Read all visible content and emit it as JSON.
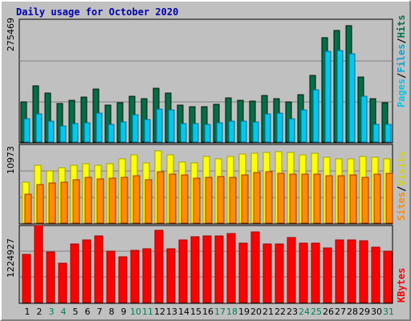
{
  "chart_data": {
    "type": "bar",
    "title": "Daily usage for October 2020",
    "categories": [
      "1",
      "2",
      "3",
      "4",
      "5",
      "6",
      "7",
      "8",
      "9",
      "10",
      "11",
      "12",
      "13",
      "14",
      "15",
      "16",
      "17",
      "18",
      "19",
      "20",
      "21",
      "22",
      "23",
      "24",
      "25",
      "26",
      "27",
      "28",
      "29",
      "30",
      "31"
    ],
    "weekend_days": [
      "3",
      "4",
      "10",
      "11",
      "17",
      "18",
      "24",
      "25",
      "31"
    ],
    "colors": {
      "hits": "#006f4a",
      "files": "#00c8ee",
      "pages": "#00e4f4",
      "visits": "#ffff00",
      "sites": "#ff8c00",
      "kbytes": "#ff0000",
      "weekday_label": "#000000",
      "weekend_label": "#00805a",
      "title": "#0000aa",
      "panel": "#c0c0c0"
    },
    "panels": [
      {
        "name": "hits-files-pages",
        "max_label": "275469",
        "ylim": [
          0,
          275469
        ],
        "legend": [
          "Pages",
          "/",
          "Files",
          "/",
          "Hits"
        ],
        "series": [
          {
            "name": "Hits",
            "values": [
              90000,
              126000,
              110000,
              87000,
              95000,
              102000,
              119000,
              84000,
              89000,
              103000,
              98000,
              122000,
              110000,
              83000,
              80000,
              79000,
              85000,
              100000,
              95000,
              92000,
              106000,
              97000,
              90000,
              107000,
              150000,
              235000,
              252000,
              263000,
              147000,
              98000,
              88000
            ]
          },
          {
            "name": "Files",
            "values": [
              53000,
              63000,
              47000,
              37000,
              42000,
              44000,
              66000,
              39000,
              46000,
              62000,
              51000,
              74000,
              73000,
              42000,
              41000,
              40000,
              44000,
              48000,
              48000,
              46000,
              63000,
              65000,
              52000,
              72000,
              117000,
              205000,
              206000,
              200000,
              104000,
              40000,
              40000
            ]
          },
          {
            "name": "Pages",
            "values": [
              0,
              0,
              0,
              0,
              0,
              0,
              0,
              0,
              0,
              0,
              0,
              0,
              0,
              0,
              0,
              0,
              0,
              0,
              0,
              0,
              0,
              0,
              0,
              0,
              0,
              0,
              0,
              0,
              0,
              0,
              0
            ]
          }
        ]
      },
      {
        "name": "visits-sites",
        "max_label": "10973",
        "ylim": [
          0,
          10973
        ],
        "legend": [
          "Sites",
          "/",
          "Visits"
        ],
        "series": [
          {
            "name": "Visits",
            "values": [
              5800,
              8200,
              7300,
              7800,
              8100,
              8400,
              8100,
              8400,
              9000,
              9600,
              8500,
              10150,
              9600,
              8600,
              8500,
              9400,
              9000,
              9400,
              9700,
              9800,
              10000,
              10100,
              10000,
              9600,
              9800,
              9300,
              9000,
              9100,
              9400,
              9300,
              9100
            ]
          },
          {
            "name": "Sites",
            "values": [
              4100,
              5400,
              5600,
              5800,
              6100,
              6500,
              6200,
              6300,
              6500,
              6700,
              6100,
              7200,
              6900,
              6800,
              6300,
              6400,
              6600,
              6500,
              6800,
              7100,
              7200,
              7000,
              6900,
              6900,
              6900,
              6700,
              6700,
              6800,
              6500,
              6900,
              7000
            ]
          }
        ]
      },
      {
        "name": "kbytes",
        "max_label": "1224927",
        "ylim": [
          0,
          1224927
        ],
        "legend": [
          "KBytes"
        ],
        "series": [
          {
            "name": "KBytes",
            "values": [
              780000,
              1240000,
              810000,
              630000,
              940000,
              1010000,
              1070000,
              830000,
              730000,
              840000,
              870000,
              1155000,
              870000,
              1010000,
              1060000,
              1075000,
              1070000,
              1110000,
              960000,
              1140000,
              940000,
              940000,
              1050000,
              950000,
              950000,
              875000,
              1010000,
              1010000,
              990000,
              890000,
              820000
            ]
          }
        ]
      }
    ]
  }
}
